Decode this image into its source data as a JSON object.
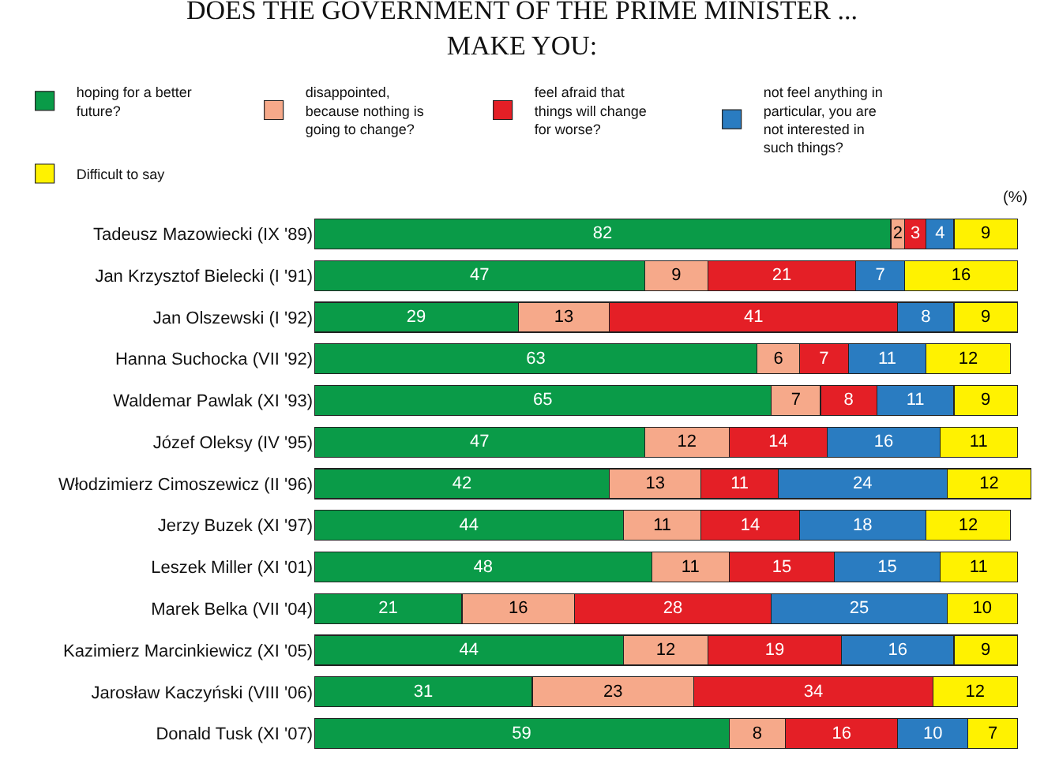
{
  "chart_data": {
    "type": "bar",
    "orientation": "horizontal",
    "stacked": true,
    "data_labels": true,
    "legend": "top",
    "grid": false,
    "title": "DOES THE GOVERNMENT OF THE PRIME MINISTER ... MAKE YOU:",
    "annotations": [
      "(%)"
    ],
    "categories": [
      "Tadeusz Mazowiecki (IX '89)",
      "Jan Krzysztof Bielecki (I '91)",
      "Jan Olszewski (I '92)",
      "Hanna Suchocka (VII '92)",
      "Waldemar Pawlak (XI '93)",
      "Józef Oleksy (IV '95)",
      "Włodzimierz Cimoszewicz (II '96)",
      "Jerzy Buzek (XI '97)",
      "Leszek Miller (XI '01)",
      "Marek Belka (VII '04)",
      "Kazimierz Marcinkiewicz (XI '05)",
      "Jarosław Kaczyński (VIII '06)",
      "Donald Tusk (XI '07)"
    ],
    "series": [
      {
        "name": "hoping for a better future?",
        "color": "#0a9b48",
        "values": [
          82,
          47,
          29,
          63,
          65,
          47,
          42,
          44,
          48,
          21,
          44,
          31,
          59
        ]
      },
      {
        "name": "disappointed, because nothing is going to change?",
        "color": "#f6a98a",
        "values": [
          2,
          9,
          13,
          6,
          7,
          12,
          13,
          11,
          11,
          16,
          12,
          23,
          8
        ]
      },
      {
        "name": "feel afraid that things will change for worse?",
        "color": "#e41f26",
        "values": [
          3,
          21,
          41,
          7,
          8,
          14,
          11,
          14,
          15,
          28,
          19,
          34,
          16
        ]
      },
      {
        "name": "not feel anything in particular, you are not interested in such things?",
        "color": "#2a7cc1",
        "values": [
          4,
          7,
          8,
          11,
          11,
          16,
          24,
          18,
          15,
          25,
          16,
          null,
          10
        ]
      },
      {
        "name": "Difficult to say",
        "color": "#fff200",
        "values": [
          9,
          16,
          9,
          12,
          9,
          11,
          12,
          12,
          11,
          10,
          9,
          12,
          7
        ]
      }
    ]
  }
}
